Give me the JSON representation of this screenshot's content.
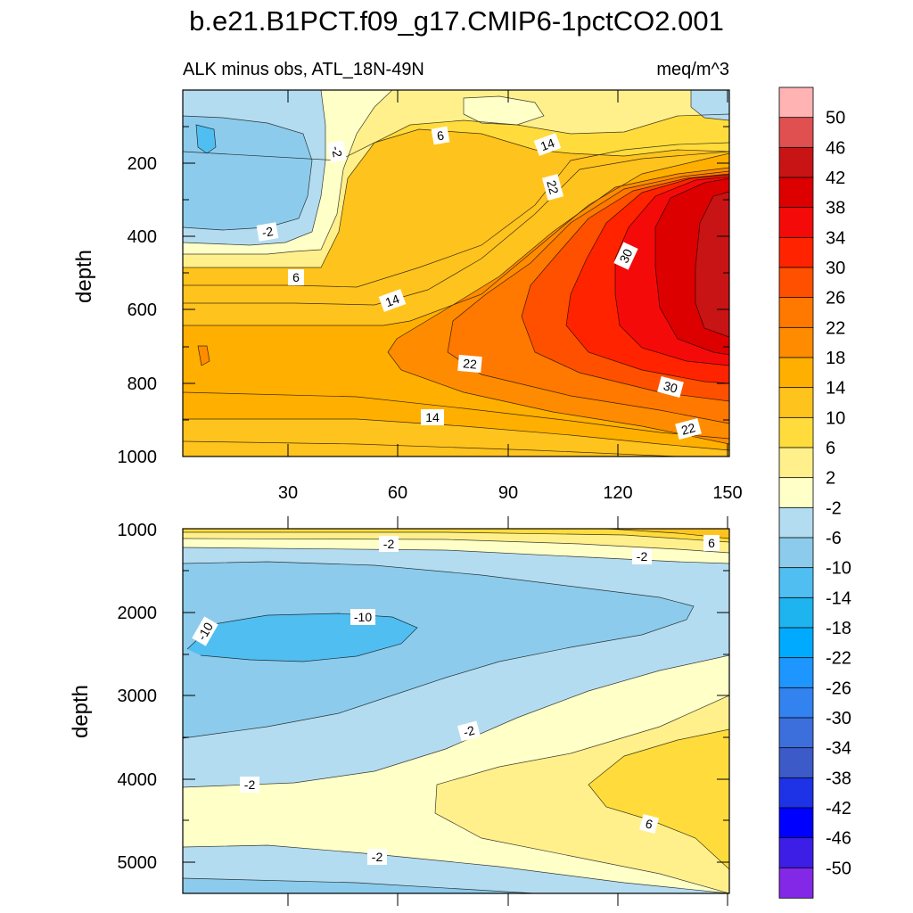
{
  "figure": {
    "title": "b.e21.B1PCT.f09_g17.CMIP6-1pctCO2.001",
    "left_subtitle": "ALK minus obs, ATL_18N-49N",
    "right_subtitle": "meq/m^3"
  },
  "chart_data": [
    {
      "type": "heatmap",
      "panel": "upper",
      "xlabel": "",
      "ylabel": "depth",
      "xlim": [
        0,
        151
      ],
      "ylim": [
        1000,
        0
      ],
      "xticks": [
        "30",
        "60",
        "90",
        "120",
        "150"
      ],
      "yticks": [
        "200",
        "400",
        "600",
        "800",
        "1000"
      ],
      "contour_labels": [
        "6",
        "-2",
        "14",
        "22",
        "-2",
        "6",
        "14",
        "30",
        "22",
        "30",
        "14",
        "22"
      ],
      "description_values": {
        "x": [
          0,
          30,
          60,
          90,
          120,
          151
        ],
        "depth": [
          0,
          200,
          400,
          600,
          800,
          1000
        ],
        "values": [
          [
            -6,
            2,
            6,
            10,
            10,
            0
          ],
          [
            -8,
            -2,
            10,
            18,
            38,
            42
          ],
          [
            2,
            6,
            14,
            22,
            34,
            42
          ],
          [
            10,
            10,
            14,
            22,
            38,
            42
          ],
          [
            14,
            14,
            18,
            22,
            30,
            38
          ],
          [
            10,
            10,
            10,
            14,
            18,
            22
          ]
        ]
      }
    },
    {
      "type": "heatmap",
      "panel": "lower",
      "xlabel": "",
      "ylabel": "depth",
      "xlim": [
        0,
        151
      ],
      "ylim": [
        5400,
        1000
      ],
      "yticks": [
        "1000",
        "2000",
        "3000",
        "4000",
        "5000"
      ],
      "contour_labels": [
        "-2",
        "6",
        "-2",
        "-10",
        "-10",
        "-2",
        "-2",
        "6",
        "-2"
      ],
      "description_values": {
        "x": [
          0,
          30,
          60,
          90,
          120,
          151
        ],
        "depth": [
          1000,
          2000,
          3000,
          4000,
          5000
        ],
        "values": [
          [
            6,
            6,
            6,
            6,
            6,
            6
          ],
          [
            -10,
            -10,
            -6,
            -6,
            -6,
            -2
          ],
          [
            -6,
            -6,
            -6,
            -6,
            -2,
            -2
          ],
          [
            -2,
            -2,
            2,
            2,
            6,
            6
          ],
          [
            -2,
            -2,
            2,
            2,
            2,
            6
          ]
        ]
      }
    }
  ],
  "colorbar": {
    "labels": [
      "50",
      "46",
      "42",
      "38",
      "34",
      "30",
      "26",
      "22",
      "18",
      "14",
      "10",
      "6",
      "2",
      "-2",
      "-6",
      "-10",
      "-14",
      "-18",
      "-22",
      "-26",
      "-30",
      "-34",
      "-38",
      "-42",
      "-46",
      "-50"
    ],
    "colors": [
      "#ffb3b3",
      "#e05050",
      "#c81414",
      "#dc0000",
      "#f50a0a",
      "#ff2300",
      "#ff5000",
      "#ff7800",
      "#ff8c00",
      "#ffaf00",
      "#ffc31e",
      "#ffdc3c",
      "#fff08c",
      "#ffffc8",
      "#b4dcf0",
      "#8ccbeb",
      "#50bef0",
      "#1eb4f0",
      "#00aaff",
      "#1e96ff",
      "#3282f0",
      "#3c6edc",
      "#3c5ac8",
      "#1e32e6",
      "#0000ff",
      "#3c1ee6",
      "#8228e6"
    ]
  }
}
